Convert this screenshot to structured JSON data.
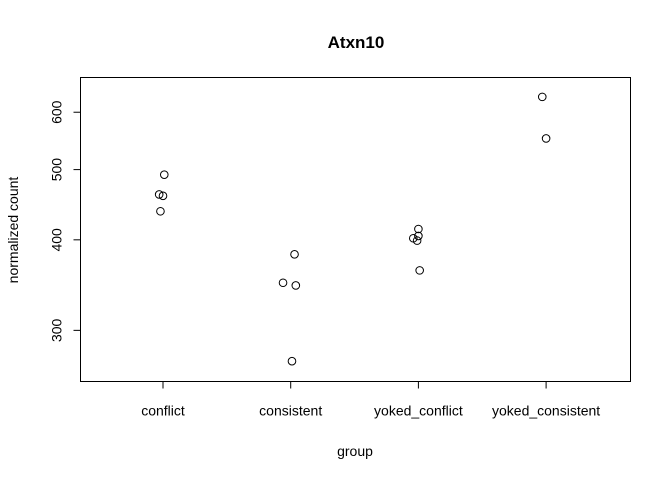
{
  "chart_data": {
    "type": "scatter",
    "title": "Atxn10",
    "xlabel": "group",
    "ylabel": "normalized count",
    "y_scale": "log",
    "ylim": [
      255,
      670
    ],
    "categories": [
      "conflict",
      "consistent",
      "yoked_conflict",
      "yoked_consistent"
    ],
    "yticks": [
      300,
      400,
      500,
      600
    ],
    "ytick_labels": [
      "300",
      "400",
      "500",
      "600"
    ],
    "grid": false,
    "points": [
      {
        "group": "conflict",
        "jitter": 0.01,
        "value": 492
      },
      {
        "group": "conflict",
        "jitter": -0.03,
        "value": 462
      },
      {
        "group": "conflict",
        "jitter": 0.0,
        "value": 460
      },
      {
        "group": "conflict",
        "jitter": -0.02,
        "value": 438
      },
      {
        "group": "consistent",
        "jitter": 0.03,
        "value": 382
      },
      {
        "group": "consistent",
        "jitter": -0.06,
        "value": 349
      },
      {
        "group": "consistent",
        "jitter": 0.04,
        "value": 346
      },
      {
        "group": "consistent",
        "jitter": 0.01,
        "value": 272
      },
      {
        "group": "yoked_conflict",
        "jitter": 0.0,
        "value": 414
      },
      {
        "group": "yoked_conflict",
        "jitter": 0.0,
        "value": 405
      },
      {
        "group": "yoked_conflict",
        "jitter": -0.04,
        "value": 402
      },
      {
        "group": "yoked_conflict",
        "jitter": -0.01,
        "value": 399
      },
      {
        "group": "yoked_conflict",
        "jitter": 0.01,
        "value": 363
      },
      {
        "group": "yoked_consistent",
        "jitter": -0.03,
        "value": 630
      },
      {
        "group": "yoked_consistent",
        "jitter": 0.0,
        "value": 552
      }
    ]
  }
}
